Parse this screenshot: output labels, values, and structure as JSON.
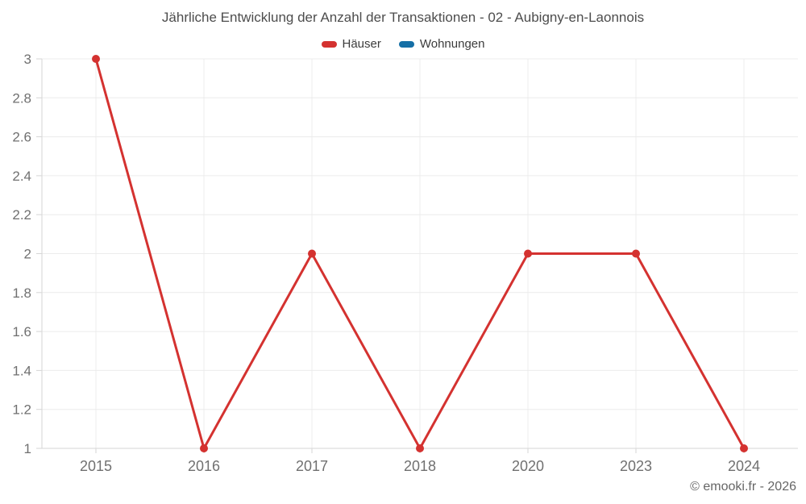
{
  "chart_data": {
    "type": "line",
    "title": "Jährliche Entwicklung der Anzahl der Transaktionen - 02 - Aubigny-en-Laonnois",
    "xlabel": "",
    "ylabel": "",
    "categories": [
      "2015",
      "2016",
      "2017",
      "2018",
      "2020",
      "2023",
      "2024"
    ],
    "series": [
      {
        "name": "Häuser",
        "color": "#d43230",
        "values": [
          3,
          1,
          2,
          1,
          2,
          2,
          1
        ]
      },
      {
        "name": "Wohnungen",
        "color": "#156fa6",
        "values": []
      }
    ],
    "ylim": [
      1,
      3
    ],
    "y_ticks": [
      "1",
      "1.2",
      "1.4",
      "1.6",
      "1.8",
      "2",
      "2.2",
      "2.4",
      "2.6",
      "2.8",
      "3"
    ],
    "grid": true,
    "legend_position": "top",
    "style": {
      "grid_color": "#ececec",
      "axis_color": "#d6d6d6",
      "tick_label_color": "#707070",
      "title_color": "#4d4d4d",
      "legend_text_color": "#3c3c3c",
      "copyright_color": "#666666",
      "background": "#ffffff"
    }
  },
  "footer": {
    "copyright": "© emooki.fr - 2026"
  }
}
